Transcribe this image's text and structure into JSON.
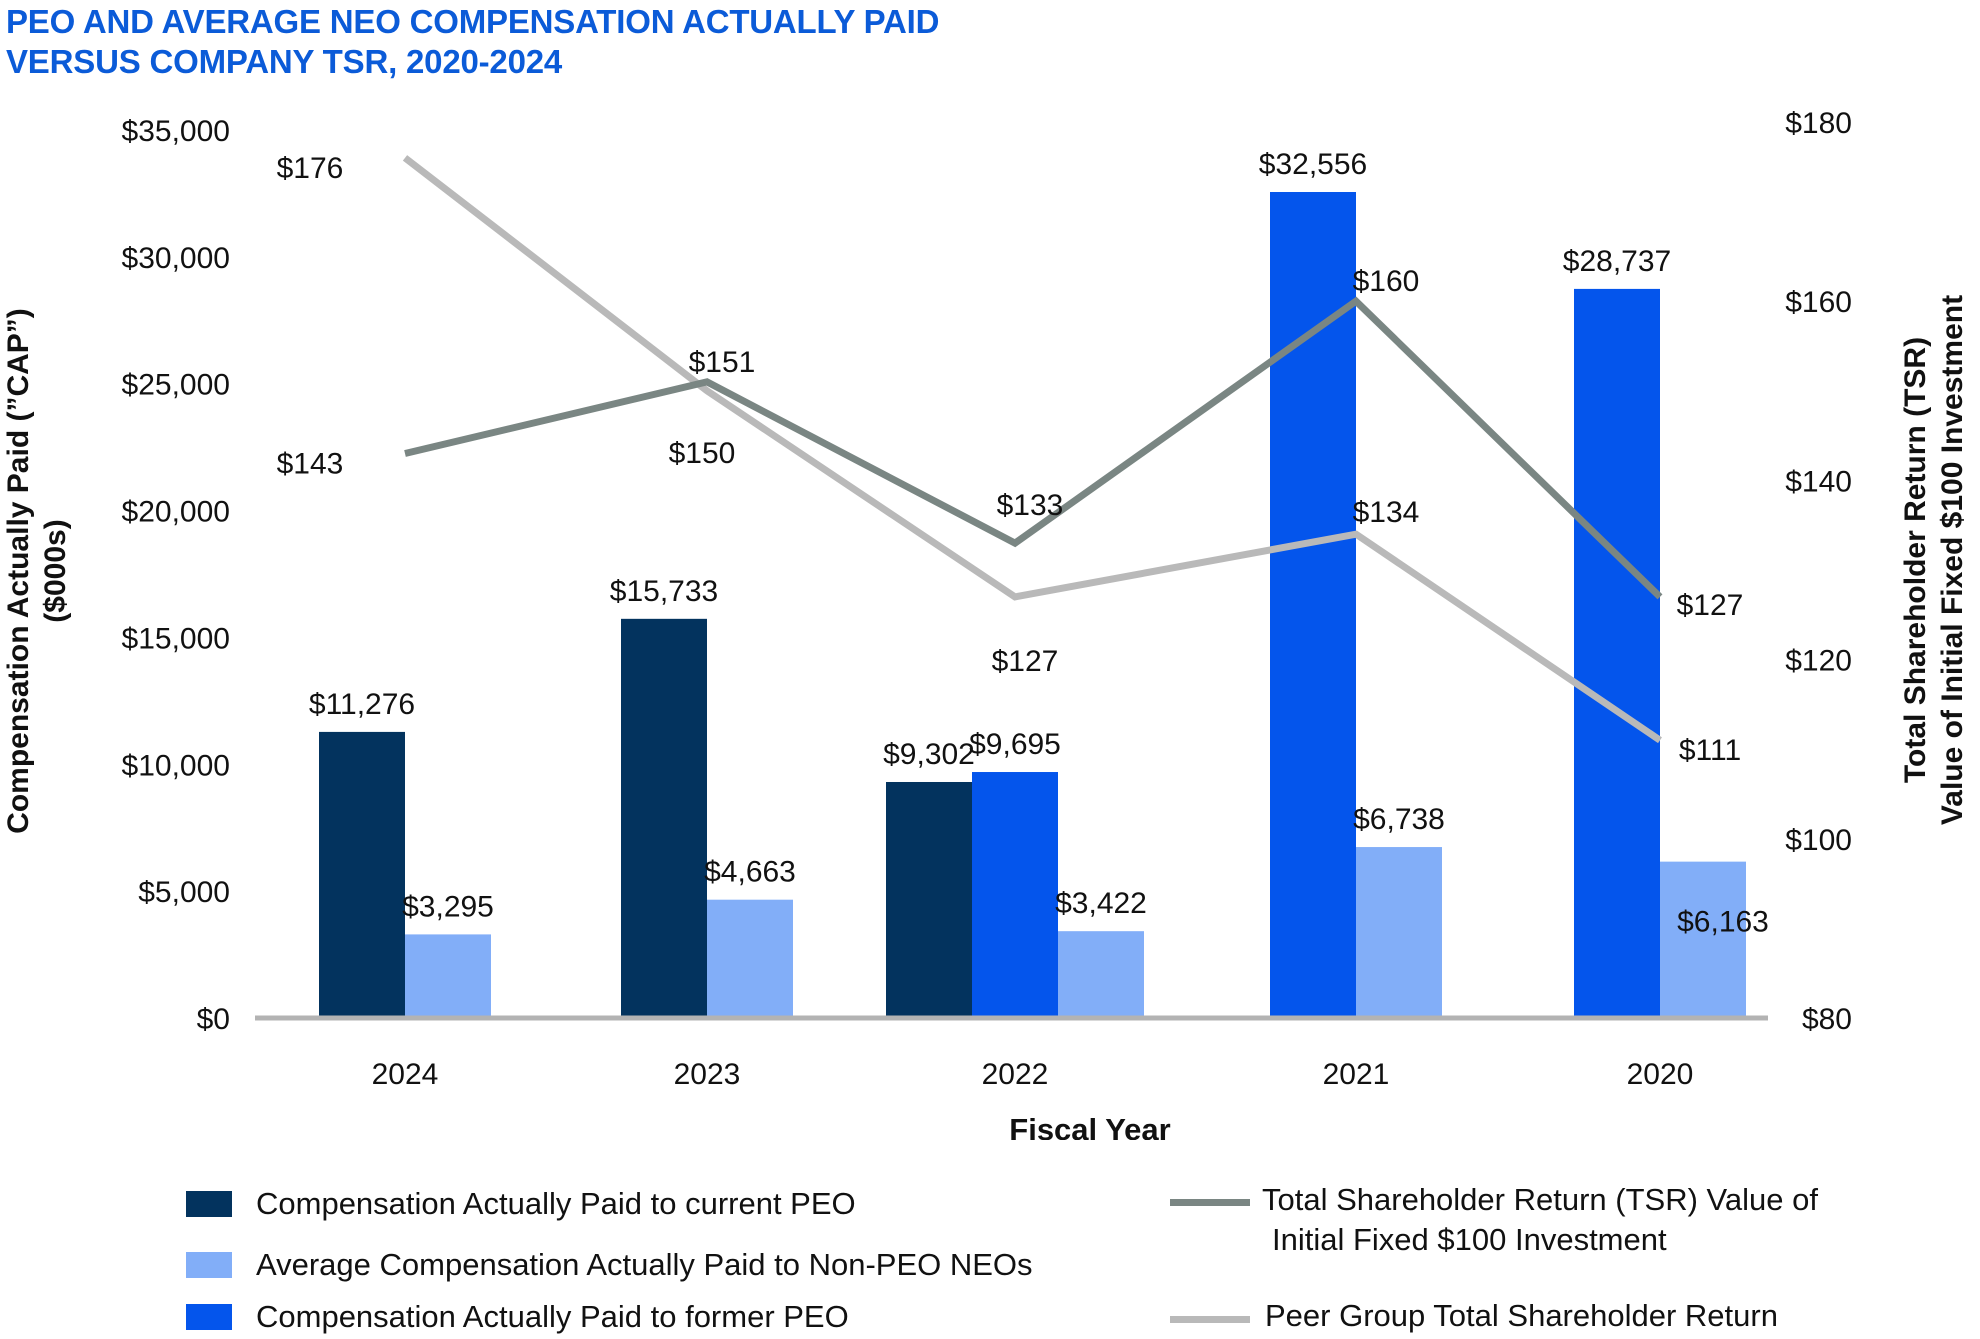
{
  "title_line1": "PEO AND AVERAGE NEO COMPENSATION ACTUALLY PAID",
  "title_line2": "VERSUS COMPANY TSR, 2020-2024",
  "chart_data": {
    "type": "bar",
    "title": "PEO AND AVERAGE NEO COMPENSATION ACTUALLY PAID VERSUS COMPANY TSR, 2020-2024",
    "xlabel": "Fiscal Year",
    "ylabel_line1": "Compensation Actually Paid (”CAP”)",
    "ylabel_line2": "($000s)",
    "y2label_line1": "Total Shareholder Return (TSR)",
    "y2label_line2": "Value of Initial Fixed $100 Investment",
    "categories": [
      "2024",
      "2023",
      "2022",
      "2021",
      "2020"
    ],
    "ylim": [
      0,
      35000
    ],
    "y_ticks": [
      "$0",
      "$5,000",
      "$10,000",
      "$15,000",
      "$20,000",
      "$25,000",
      "$30,000",
      "$35,000"
    ],
    "y2lim": [
      80,
      180
    ],
    "y2_ticks": [
      "$80",
      "$100",
      "$120",
      "$140",
      "$160",
      "$180"
    ],
    "bar_series": [
      {
        "name": "Compensation Actually Paid to current PEO",
        "color": "#03335e",
        "values": [
          11276,
          15733,
          9302,
          null,
          null
        ],
        "labels": [
          "$11,276",
          "$15,733",
          "$9,302",
          "",
          ""
        ]
      },
      {
        "name": "Compensation Actually Paid to former PEO",
        "color": "#0455ec",
        "values": [
          null,
          null,
          9695,
          32556,
          28737
        ],
        "labels": [
          "",
          "",
          "$9,695",
          "$32,556",
          "$28,737"
        ]
      },
      {
        "name": "Average Compensation Actually Paid to Non-PEO NEOs",
        "color": "#82aef8",
        "values": [
          3295,
          4663,
          3422,
          6738,
          6163
        ],
        "labels": [
          "$3,295",
          "$4,663",
          "$3,422",
          "$6,738",
          "$6,163"
        ]
      }
    ],
    "line_series": [
      {
        "name": "Total Shareholder Return (TSR) Value of Initial Fixed $100 Investment",
        "color": "#7a8683",
        "values": [
          143,
          151,
          133,
          160,
          127
        ],
        "labels": [
          "$143",
          "$151",
          "$133",
          "$160",
          "$127"
        ]
      },
      {
        "name": "Peer Group Total Shareholder Return",
        "color": "#b9b9b9",
        "values": [
          176,
          150,
          127,
          134,
          111
        ],
        "labels": [
          "$176",
          "$150",
          "$127",
          "$134",
          "$111"
        ]
      }
    ]
  },
  "legend": {
    "current_peo": "Compensation Actually Paid to current PEO",
    "non_peo": "Average Compensation Actually Paid to Non-PEO NEOs",
    "former_peo": "Compensation Actually Paid to former PEO",
    "tsr_line1": "Total Shareholder Return (TSR) Value of",
    "tsr_line2": "Initial Fixed $100 Investment",
    "peer": "Peer Group Total Shareholder Return"
  }
}
